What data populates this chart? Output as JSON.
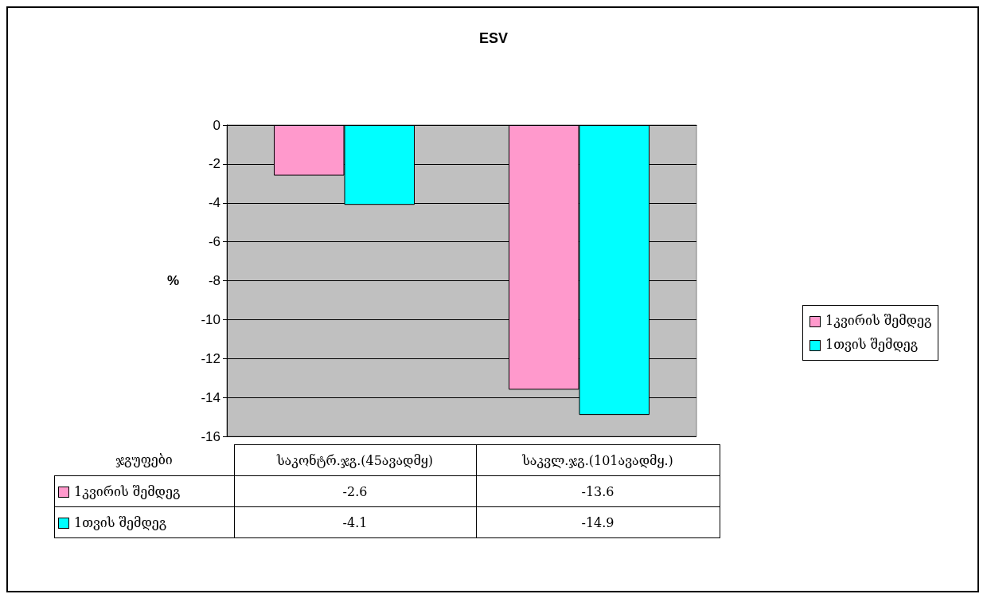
{
  "chart_data": {
    "type": "bar",
    "title": "ESV",
    "ylabel": "%",
    "xlabel": "ჯგუფები",
    "categories": [
      "საკონტრ.ჯგ.(45ავადმყ)",
      "საკვლ.ჯგ.(101ავადმყ.)"
    ],
    "series": [
      {
        "name": "1კვირის შემდეგ",
        "color": "#ff99cc",
        "values": [
          -2.6,
          -13.6
        ]
      },
      {
        "name": "1თვის შემდეგ",
        "color": "#00ffff",
        "values": [
          -4.1,
          -14.9
        ]
      }
    ],
    "ylim": [
      -16,
      0
    ],
    "yticks": [
      -16,
      -14,
      -12,
      -10,
      -8,
      -6,
      -4,
      -2,
      0
    ],
    "grid": "y",
    "legend": "right",
    "data_labels": true
  }
}
